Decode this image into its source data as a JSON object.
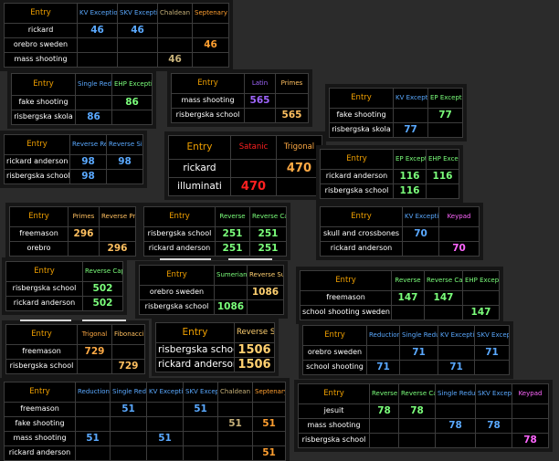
{
  "colors": {
    "KV Exception": "#5aa9ff",
    "SKV Exception": "#5aa9ff",
    "EP Exception": "#7bff7b",
    "EHP Exception": "#7bff7b",
    "Reverse": "#7bff7b",
    "Reverse Caps Added": "#7bff7b",
    "Reverse Caps Mixed": "#7bff7b",
    "Reverse Reduction": "#5aa9ff",
    "Reverse Single Reduction": "#5aa9ff",
    "Reduction": "#5aa9ff",
    "Single Reduction": "#5aa9ff",
    "Chaldean": "#c8b27a",
    "Septenary": "#ff9f30",
    "Latin": "#a066ff",
    "Primes": "#ffc060",
    "Reverse Primes": "#ffc060",
    "Satanic": "#ff2020",
    "Trigonal": "#ffaa44",
    "Sumerian": "#7bff7b",
    "Reverse Sumerian": "#ffd070",
    "Fibonacci": "#ffc060",
    "Keypad": "#ff66ff"
  },
  "tables": [
    {
      "columns": [
        "Entry",
        "KV Exception",
        "SKV Exception",
        "Chaldean",
        "Septenary"
      ],
      "rows": [
        {
          "label": "rickard",
          "values": [
            "46",
            "46",
            "",
            ""
          ]
        },
        {
          "label": "orebro sweden",
          "values": [
            "",
            "",
            "",
            "46"
          ]
        },
        {
          "label": "mass shooting",
          "values": [
            "",
            "",
            "46",
            ""
          ]
        }
      ]
    },
    {
      "columns": [
        "Entry",
        "Single Reduction",
        "EHP Exception"
      ],
      "rows": [
        {
          "label": "fake shooting",
          "values": [
            "",
            "86"
          ]
        },
        {
          "label": "risbergska skola",
          "values": [
            "86",
            ""
          ]
        }
      ]
    },
    {
      "columns": [
        "Entry",
        "Latin",
        "Primes"
      ],
      "rows": [
        {
          "label": "mass shooting",
          "values": [
            "565",
            ""
          ]
        },
        {
          "label": "risbergska school",
          "values": [
            "",
            "565"
          ]
        }
      ]
    },
    {
      "columns": [
        "Entry",
        "KV Exception",
        "EP Exception"
      ],
      "rows": [
        {
          "label": "fake shooting",
          "values": [
            "",
            "77"
          ]
        },
        {
          "label": "risbergska skola",
          "values": [
            "77",
            ""
          ]
        }
      ]
    },
    {
      "columns": [
        "Entry",
        "Reverse Reduction",
        "Reverse Single Reduction"
      ],
      "rows": [
        {
          "label": "rickard anderson",
          "values": [
            "98",
            "98"
          ]
        },
        {
          "label": "risbergska school",
          "values": [
            "98",
            ""
          ]
        }
      ]
    },
    {
      "columns": [
        "Entry",
        "Satanic",
        "Trigonal"
      ],
      "rows": [
        {
          "label": "rickard",
          "values": [
            "",
            "470"
          ]
        },
        {
          "label": "illuminati",
          "values": [
            "470",
            ""
          ]
        }
      ]
    },
    {
      "columns": [
        "Entry",
        "EP Exception",
        "EHP Exception"
      ],
      "rows": [
        {
          "label": "rickard anderson",
          "values": [
            "116",
            "116"
          ]
        },
        {
          "label": "risbergska school",
          "values": [
            "116",
            ""
          ]
        }
      ]
    },
    {
      "columns": [
        "Entry",
        "Primes",
        "Reverse Primes"
      ],
      "rows": [
        {
          "label": "freemason",
          "values": [
            "296",
            ""
          ]
        },
        {
          "label": "orebro",
          "values": [
            "",
            "296"
          ]
        }
      ]
    },
    {
      "columns": [
        "Entry",
        "Reverse",
        "Reverse Caps Added"
      ],
      "rows": [
        {
          "label": "risbergska school",
          "values": [
            "251",
            "251"
          ]
        },
        {
          "label": "rickard anderson",
          "values": [
            "251",
            "251"
          ]
        }
      ]
    },
    {
      "columns": [
        "Entry",
        "KV Exception",
        "Keypad"
      ],
      "rows": [
        {
          "label": "skull and crossbones",
          "values": [
            "70",
            ""
          ]
        },
        {
          "label": "rickard anderson",
          "values": [
            "",
            "70"
          ]
        }
      ]
    },
    {
      "columns": [
        "Entry",
        "Reverse Caps Mixed"
      ],
      "rows": [
        {
          "label": "risbergska school",
          "values": [
            "502"
          ]
        },
        {
          "label": "rickard anderson",
          "values": [
            "502"
          ]
        }
      ]
    },
    {
      "columns": [
        "Entry",
        "Sumerian",
        "Reverse Sumerian"
      ],
      "rows": [
        {
          "label": "orebro sweden",
          "values": [
            "",
            "1086"
          ]
        },
        {
          "label": "risbergska school",
          "values": [
            "1086",
            ""
          ]
        }
      ]
    },
    {
      "columns": [
        "Entry",
        "Reverse",
        "Reverse Caps Added",
        "EHP Exception"
      ],
      "rows": [
        {
          "label": "freemason",
          "values": [
            "147",
            "147",
            ""
          ]
        },
        {
          "label": "school shooting sweden",
          "values": [
            "",
            "",
            "147"
          ]
        }
      ]
    },
    {
      "columns": [
        "Entry",
        "Trigonal",
        "Fibonacci"
      ],
      "rows": [
        {
          "label": "freemason",
          "values": [
            "729",
            ""
          ]
        },
        {
          "label": "risbergska school",
          "values": [
            "",
            "729"
          ]
        }
      ]
    },
    {
      "columns": [
        "Entry",
        "Reverse Sumerian"
      ],
      "rows": [
        {
          "label": "risbergska school",
          "values": [
            "1506"
          ]
        },
        {
          "label": "rickard anderson",
          "values": [
            "1506"
          ]
        }
      ]
    },
    {
      "columns": [
        "Entry",
        "Reduction",
        "Single Reduction",
        "KV Exception",
        "SKV Exception"
      ],
      "rows": [
        {
          "label": "orebro sweden",
          "values": [
            "",
            "71",
            "",
            "71"
          ]
        },
        {
          "label": "school shooting",
          "values": [
            "71",
            "",
            "71",
            ""
          ]
        }
      ]
    },
    {
      "columns": [
        "Entry",
        "Reduction",
        "Single Reduction",
        "KV Exception",
        "SKV Exception",
        "Chaldean",
        "Septenary"
      ],
      "rows": [
        {
          "label": "freemason",
          "values": [
            "",
            "51",
            "",
            "51",
            "",
            ""
          ]
        },
        {
          "label": "fake shooting",
          "values": [
            "",
            "",
            "",
            "",
            "51",
            "51"
          ]
        },
        {
          "label": "mass shooting",
          "values": [
            "51",
            "",
            "51",
            "",
            "",
            ""
          ]
        },
        {
          "label": "rickard anderson",
          "values": [
            "",
            "",
            "",
            "",
            "",
            "51"
          ]
        }
      ]
    },
    {
      "columns": [
        "Entry",
        "Reverse",
        "Reverse Caps Added",
        "Single Reduction",
        "SKV Exception",
        "Keypad"
      ],
      "rows": [
        {
          "label": "jesuit",
          "values": [
            "78",
            "78",
            "",
            "",
            ""
          ]
        },
        {
          "label": "mass shooting",
          "values": [
            "",
            "",
            "78",
            "78",
            ""
          ]
        },
        {
          "label": "risbergska school",
          "values": [
            "",
            "",
            "",
            "",
            "78"
          ]
        }
      ]
    }
  ]
}
